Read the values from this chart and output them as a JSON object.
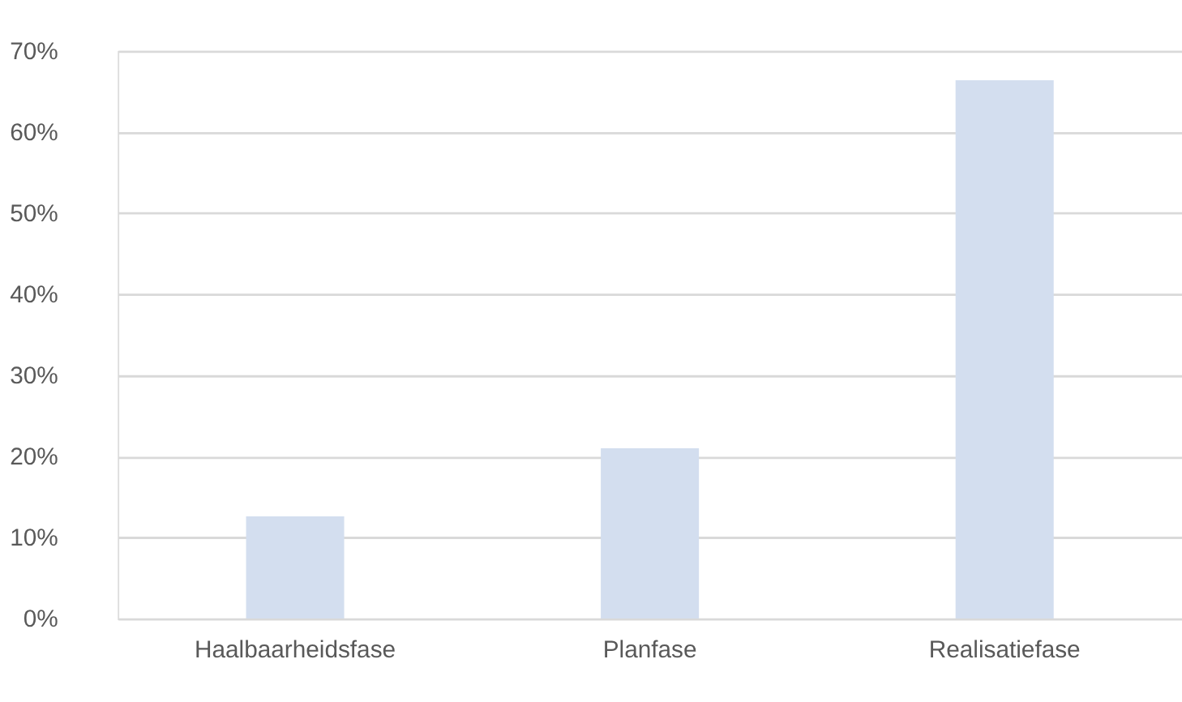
{
  "chart_data": {
    "type": "bar",
    "categories": [
      "Haalbaarheidsfase",
      "Planfase",
      "Realisatiefase"
    ],
    "values": [
      12.6,
      21.0,
      66.4
    ],
    "color": "#d3deef",
    "ylim": [
      0,
      70
    ],
    "yticks": [
      {
        "value": 0,
        "label": "0%"
      },
      {
        "value": 10,
        "label": "10%"
      },
      {
        "value": 20,
        "label": "20%"
      },
      {
        "value": 30,
        "label": "30%"
      },
      {
        "value": 40,
        "label": "40%"
      },
      {
        "value": 50,
        "label": "50%"
      },
      {
        "value": 60,
        "label": "60%"
      },
      {
        "value": 70,
        "label": "70%"
      }
    ],
    "grid": "y"
  }
}
